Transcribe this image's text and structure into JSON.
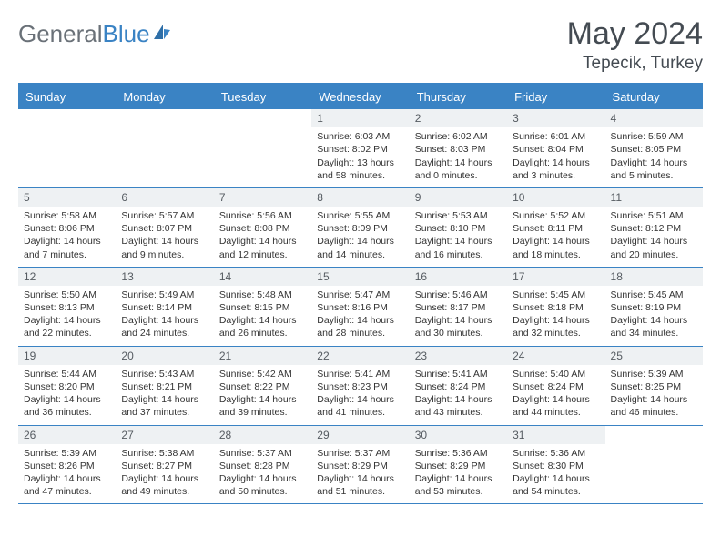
{
  "brand": {
    "part1": "General",
    "part2": "Blue"
  },
  "title": {
    "month": "May 2024",
    "location": "Tepecik, Turkey"
  },
  "colors": {
    "accent": "#3a83c4",
    "header_bg": "#3a83c4",
    "header_text": "#ffffff",
    "daynum_bg": "#eef1f3",
    "text": "#333333",
    "border": "#3a83c4"
  },
  "days_of_week": [
    "Sunday",
    "Monday",
    "Tuesday",
    "Wednesday",
    "Thursday",
    "Friday",
    "Saturday"
  ],
  "weeks": [
    [
      {
        "n": "",
        "sr": "",
        "ss": "",
        "dl": ""
      },
      {
        "n": "",
        "sr": "",
        "ss": "",
        "dl": ""
      },
      {
        "n": "",
        "sr": "",
        "ss": "",
        "dl": ""
      },
      {
        "n": "1",
        "sr": "Sunrise: 6:03 AM",
        "ss": "Sunset: 8:02 PM",
        "dl": "Daylight: 13 hours and 58 minutes."
      },
      {
        "n": "2",
        "sr": "Sunrise: 6:02 AM",
        "ss": "Sunset: 8:03 PM",
        "dl": "Daylight: 14 hours and 0 minutes."
      },
      {
        "n": "3",
        "sr": "Sunrise: 6:01 AM",
        "ss": "Sunset: 8:04 PM",
        "dl": "Daylight: 14 hours and 3 minutes."
      },
      {
        "n": "4",
        "sr": "Sunrise: 5:59 AM",
        "ss": "Sunset: 8:05 PM",
        "dl": "Daylight: 14 hours and 5 minutes."
      }
    ],
    [
      {
        "n": "5",
        "sr": "Sunrise: 5:58 AM",
        "ss": "Sunset: 8:06 PM",
        "dl": "Daylight: 14 hours and 7 minutes."
      },
      {
        "n": "6",
        "sr": "Sunrise: 5:57 AM",
        "ss": "Sunset: 8:07 PM",
        "dl": "Daylight: 14 hours and 9 minutes."
      },
      {
        "n": "7",
        "sr": "Sunrise: 5:56 AM",
        "ss": "Sunset: 8:08 PM",
        "dl": "Daylight: 14 hours and 12 minutes."
      },
      {
        "n": "8",
        "sr": "Sunrise: 5:55 AM",
        "ss": "Sunset: 8:09 PM",
        "dl": "Daylight: 14 hours and 14 minutes."
      },
      {
        "n": "9",
        "sr": "Sunrise: 5:53 AM",
        "ss": "Sunset: 8:10 PM",
        "dl": "Daylight: 14 hours and 16 minutes."
      },
      {
        "n": "10",
        "sr": "Sunrise: 5:52 AM",
        "ss": "Sunset: 8:11 PM",
        "dl": "Daylight: 14 hours and 18 minutes."
      },
      {
        "n": "11",
        "sr": "Sunrise: 5:51 AM",
        "ss": "Sunset: 8:12 PM",
        "dl": "Daylight: 14 hours and 20 minutes."
      }
    ],
    [
      {
        "n": "12",
        "sr": "Sunrise: 5:50 AM",
        "ss": "Sunset: 8:13 PM",
        "dl": "Daylight: 14 hours and 22 minutes."
      },
      {
        "n": "13",
        "sr": "Sunrise: 5:49 AM",
        "ss": "Sunset: 8:14 PM",
        "dl": "Daylight: 14 hours and 24 minutes."
      },
      {
        "n": "14",
        "sr": "Sunrise: 5:48 AM",
        "ss": "Sunset: 8:15 PM",
        "dl": "Daylight: 14 hours and 26 minutes."
      },
      {
        "n": "15",
        "sr": "Sunrise: 5:47 AM",
        "ss": "Sunset: 8:16 PM",
        "dl": "Daylight: 14 hours and 28 minutes."
      },
      {
        "n": "16",
        "sr": "Sunrise: 5:46 AM",
        "ss": "Sunset: 8:17 PM",
        "dl": "Daylight: 14 hours and 30 minutes."
      },
      {
        "n": "17",
        "sr": "Sunrise: 5:45 AM",
        "ss": "Sunset: 8:18 PM",
        "dl": "Daylight: 14 hours and 32 minutes."
      },
      {
        "n": "18",
        "sr": "Sunrise: 5:45 AM",
        "ss": "Sunset: 8:19 PM",
        "dl": "Daylight: 14 hours and 34 minutes."
      }
    ],
    [
      {
        "n": "19",
        "sr": "Sunrise: 5:44 AM",
        "ss": "Sunset: 8:20 PM",
        "dl": "Daylight: 14 hours and 36 minutes."
      },
      {
        "n": "20",
        "sr": "Sunrise: 5:43 AM",
        "ss": "Sunset: 8:21 PM",
        "dl": "Daylight: 14 hours and 37 minutes."
      },
      {
        "n": "21",
        "sr": "Sunrise: 5:42 AM",
        "ss": "Sunset: 8:22 PM",
        "dl": "Daylight: 14 hours and 39 minutes."
      },
      {
        "n": "22",
        "sr": "Sunrise: 5:41 AM",
        "ss": "Sunset: 8:23 PM",
        "dl": "Daylight: 14 hours and 41 minutes."
      },
      {
        "n": "23",
        "sr": "Sunrise: 5:41 AM",
        "ss": "Sunset: 8:24 PM",
        "dl": "Daylight: 14 hours and 43 minutes."
      },
      {
        "n": "24",
        "sr": "Sunrise: 5:40 AM",
        "ss": "Sunset: 8:24 PM",
        "dl": "Daylight: 14 hours and 44 minutes."
      },
      {
        "n": "25",
        "sr": "Sunrise: 5:39 AM",
        "ss": "Sunset: 8:25 PM",
        "dl": "Daylight: 14 hours and 46 minutes."
      }
    ],
    [
      {
        "n": "26",
        "sr": "Sunrise: 5:39 AM",
        "ss": "Sunset: 8:26 PM",
        "dl": "Daylight: 14 hours and 47 minutes."
      },
      {
        "n": "27",
        "sr": "Sunrise: 5:38 AM",
        "ss": "Sunset: 8:27 PM",
        "dl": "Daylight: 14 hours and 49 minutes."
      },
      {
        "n": "28",
        "sr": "Sunrise: 5:37 AM",
        "ss": "Sunset: 8:28 PM",
        "dl": "Daylight: 14 hours and 50 minutes."
      },
      {
        "n": "29",
        "sr": "Sunrise: 5:37 AM",
        "ss": "Sunset: 8:29 PM",
        "dl": "Daylight: 14 hours and 51 minutes."
      },
      {
        "n": "30",
        "sr": "Sunrise: 5:36 AM",
        "ss": "Sunset: 8:29 PM",
        "dl": "Daylight: 14 hours and 53 minutes."
      },
      {
        "n": "31",
        "sr": "Sunrise: 5:36 AM",
        "ss": "Sunset: 8:30 PM",
        "dl": "Daylight: 14 hours and 54 minutes."
      },
      {
        "n": "",
        "sr": "",
        "ss": "",
        "dl": ""
      }
    ]
  ]
}
